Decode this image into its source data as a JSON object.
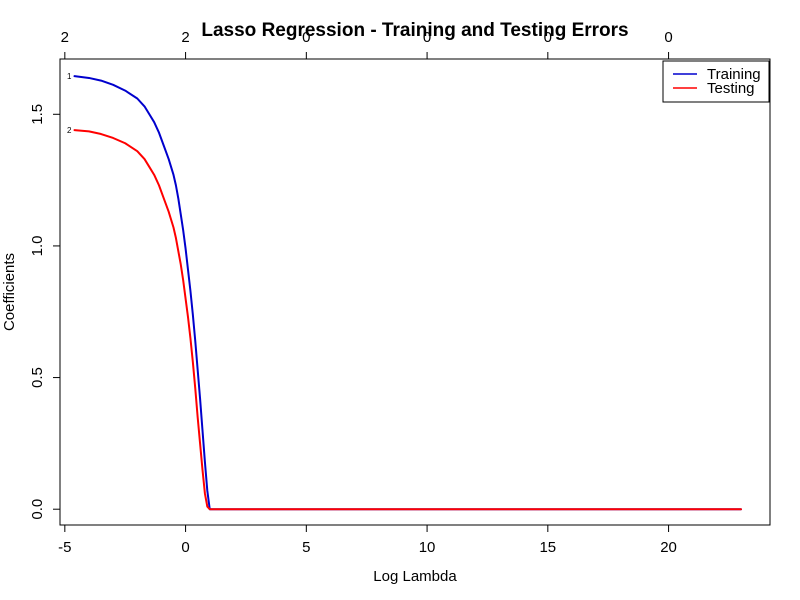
{
  "chart_data": {
    "type": "line",
    "title": "Lasso Regression - Training and Testing Errors",
    "xlabel": "Log Lambda",
    "ylabel": "Coefficients",
    "xlim": [
      -5.2,
      24.2
    ],
    "ylim": [
      -0.06,
      1.71
    ],
    "x_ticks": [
      -5,
      0,
      5,
      10,
      15,
      20
    ],
    "y_ticks": [
      0.0,
      0.5,
      1.0,
      1.5
    ],
    "x_tick_labels": [
      "-5",
      "0",
      "5",
      "10",
      "15",
      "20"
    ],
    "y_tick_labels": [
      "0.0",
      "0.5",
      "1.0",
      "1.5"
    ],
    "top_axis": {
      "ticks": [
        -5,
        0,
        5,
        10,
        15,
        20
      ],
      "labels": [
        "2",
        "2",
        "0",
        "0",
        "0",
        "0"
      ]
    },
    "curve_labels": [
      {
        "text": "1",
        "series": 0
      },
      {
        "text": "2",
        "series": 1
      }
    ],
    "legend": {
      "position": "top-right",
      "entries": [
        "Training",
        "Testing"
      ]
    },
    "series": [
      {
        "name": "Training",
        "color": "#0000CD",
        "x": [
          -4.6,
          -4.0,
          -3.5,
          -3.0,
          -2.5,
          -2.0,
          -1.7,
          -1.5,
          -1.3,
          -1.1,
          -0.9,
          -0.7,
          -0.5,
          -0.4,
          -0.3,
          -0.2,
          -0.1,
          0.0,
          0.1,
          0.2,
          0.3,
          0.4,
          0.5,
          0.6,
          0.7,
          0.8,
          0.9,
          1.0,
          2.0,
          5.0,
          10.0,
          15.0,
          20.0,
          23.0
        ],
        "values": [
          1.645,
          1.638,
          1.628,
          1.612,
          1.59,
          1.56,
          1.53,
          1.5,
          1.47,
          1.43,
          1.38,
          1.33,
          1.27,
          1.23,
          1.18,
          1.12,
          1.06,
          0.99,
          0.91,
          0.83,
          0.74,
          0.64,
          0.53,
          0.42,
          0.3,
          0.18,
          0.07,
          0.0,
          0.0,
          0.0,
          0.0,
          0.0,
          0.0,
          0.0
        ]
      },
      {
        "name": "Testing",
        "color": "#FF0000",
        "x": [
          -4.6,
          -4.0,
          -3.5,
          -3.0,
          -2.5,
          -2.0,
          -1.7,
          -1.5,
          -1.3,
          -1.1,
          -0.9,
          -0.7,
          -0.5,
          -0.4,
          -0.3,
          -0.2,
          -0.1,
          0.0,
          0.1,
          0.2,
          0.3,
          0.4,
          0.5,
          0.6,
          0.7,
          0.8,
          0.9,
          1.0,
          2.0,
          5.0,
          10.0,
          15.0,
          20.0,
          23.0
        ],
        "values": [
          1.44,
          1.435,
          1.425,
          1.41,
          1.39,
          1.36,
          1.33,
          1.3,
          1.27,
          1.23,
          1.18,
          1.13,
          1.07,
          1.03,
          0.98,
          0.93,
          0.87,
          0.8,
          0.73,
          0.65,
          0.56,
          0.46,
          0.35,
          0.25,
          0.15,
          0.06,
          0.01,
          0.0,
          0.0,
          0.0,
          0.0,
          0.0,
          0.0,
          0.0
        ]
      }
    ]
  }
}
